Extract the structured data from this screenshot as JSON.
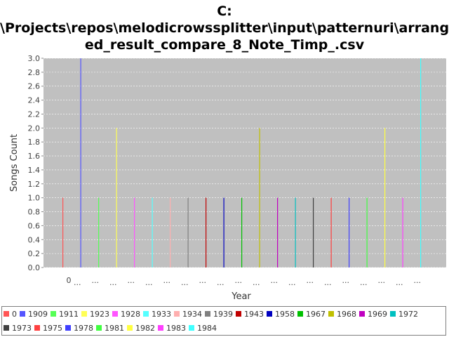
{
  "chart_data": {
    "type": "bar",
    "title_lines": [
      "C:",
      "\\Projects\\repos\\melodicrowssplitter\\input\\patternuri\\arrang",
      "ed_result_compare_8_Note_Timp_.csv"
    ],
    "xlabel": "Year",
    "ylabel": "Songs Count",
    "ylim": [
      0.0,
      3.0
    ],
    "y_ticks": [
      "0.0",
      "0.2",
      "0.4",
      "0.6",
      "0.8",
      "1.0",
      "1.2",
      "1.4",
      "1.6",
      "1.8",
      "2.0",
      "2.2",
      "2.4",
      "2.6",
      "2.8",
      "3.0"
    ],
    "x_tick_labels": [
      "0",
      "...",
      "...",
      "...",
      "...",
      "...",
      "...",
      "...",
      "...",
      "...",
      "...",
      "...",
      "...",
      "...",
      "...",
      "...",
      "...",
      "...",
      "...",
      "...",
      "..."
    ],
    "grid": true,
    "legend_position": "bottom",
    "background": "#c0c0c0",
    "series": [
      {
        "name": "0",
        "color": "#ff5555",
        "values": [
          1.0
        ]
      },
      {
        "name": "1909",
        "color": "#5555ff",
        "values": [
          3.0
        ]
      },
      {
        "name": "1911",
        "color": "#55ff55",
        "values": [
          1.0
        ]
      },
      {
        "name": "1923",
        "color": "#ffff55",
        "values": [
          2.0
        ]
      },
      {
        "name": "1928",
        "color": "#ff55ff",
        "values": [
          1.0
        ]
      },
      {
        "name": "1933",
        "color": "#55ffff",
        "values": [
          1.0
        ]
      },
      {
        "name": "1934",
        "color": "#ffafaf",
        "values": [
          1.0
        ]
      },
      {
        "name": "1939",
        "color": "#808080",
        "values": [
          1.0
        ]
      },
      {
        "name": "1943",
        "color": "#c00000",
        "values": [
          1.0
        ]
      },
      {
        "name": "1958",
        "color": "#0000c0",
        "values": [
          1.0
        ]
      },
      {
        "name": "1967",
        "color": "#00c000",
        "values": [
          1.0
        ]
      },
      {
        "name": "1968",
        "color": "#c0c000",
        "values": [
          2.0
        ]
      },
      {
        "name": "1969",
        "color": "#c000c0",
        "values": [
          1.0
        ]
      },
      {
        "name": "1972",
        "color": "#00c0c0",
        "values": [
          1.0
        ]
      },
      {
        "name": "1973",
        "color": "#404040",
        "values": [
          1.0
        ]
      },
      {
        "name": "1975",
        "color": "#ff4040",
        "values": [
          1.0
        ]
      },
      {
        "name": "1978",
        "color": "#4040ff",
        "values": [
          1.0
        ]
      },
      {
        "name": "1981",
        "color": "#40ff40",
        "values": [
          1.0
        ]
      },
      {
        "name": "1982",
        "color": "#ffff40",
        "values": [
          2.0
        ]
      },
      {
        "name": "1983",
        "color": "#ff40ff",
        "values": [
          1.0
        ]
      },
      {
        "name": "1984",
        "color": "#40ffff",
        "values": [
          3.0
        ]
      }
    ]
  }
}
